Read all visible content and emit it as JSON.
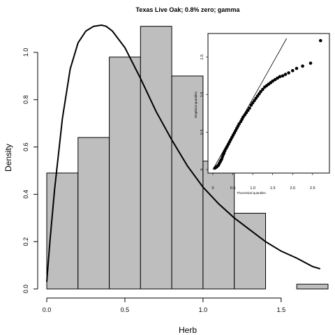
{
  "chart_data": [
    {
      "type": "bar",
      "subtype": "histogram",
      "title": "Texas Live Oak; 0.8% zero; gamma",
      "xlabel": "Herb",
      "ylabel": "Density",
      "xlim": [
        0,
        1.8
      ],
      "ylim": [
        0,
        1.1
      ],
      "xticks": [
        "0.0",
        "0.5",
        "1.0",
        "1.5"
      ],
      "yticks": [
        "0.0",
        "0.2",
        "0.4",
        "0.6",
        "0.8",
        "1.0"
      ],
      "bins": [
        {
          "x0": 0.0,
          "x1": 0.2,
          "density": 0.49
        },
        {
          "x0": 0.2,
          "x1": 0.4,
          "density": 0.64
        },
        {
          "x0": 0.4,
          "x1": 0.6,
          "density": 0.98
        },
        {
          "x0": 0.6,
          "x1": 0.8,
          "density": 1.11
        },
        {
          "x0": 0.8,
          "x1": 1.0,
          "density": 0.9
        },
        {
          "x0": 1.0,
          "x1": 1.2,
          "density": 0.54
        },
        {
          "x0": 1.2,
          "x1": 1.4,
          "density": 0.32
        },
        {
          "x0": 1.4,
          "x1": 1.6,
          "density": 0.0
        },
        {
          "x0": 1.6,
          "x1": 1.8,
          "density": 0.02
        }
      ],
      "bar_color": "#bebebe",
      "fitted_curve": {
        "distribution": "gamma",
        "x": [
          0.0,
          0.02,
          0.05,
          0.1,
          0.15,
          0.2,
          0.25,
          0.3,
          0.35,
          0.38,
          0.42,
          0.5,
          0.6,
          0.7,
          0.8,
          0.9,
          1.0,
          1.1,
          1.2,
          1.3,
          1.4,
          1.5,
          1.6,
          1.7,
          1.75
        ],
        "y": [
          0.03,
          0.2,
          0.42,
          0.72,
          0.93,
          1.04,
          1.09,
          1.11,
          1.115,
          1.11,
          1.09,
          1.02,
          0.89,
          0.75,
          0.63,
          0.52,
          0.43,
          0.36,
          0.3,
          0.25,
          0.2,
          0.16,
          0.13,
          0.095,
          0.085
        ]
      }
    },
    {
      "type": "scatter",
      "subtype": "qq-plot",
      "xlabel": "Theoretical quantiles",
      "ylabel": "Empirical quantiles",
      "xlim": [
        0,
        2.8
      ],
      "ylim": [
        0,
        1.75
      ],
      "xticks": [
        "0",
        "0.5",
        "1.0",
        "1.5",
        "2.0",
        "2.5"
      ],
      "yticks": [
        "0",
        "0.5",
        "1.0",
        "1.5"
      ],
      "reference_line": {
        "x": [
          0,
          1.85
        ],
        "y": [
          0,
          1.75
        ]
      },
      "points": {
        "x": [
          0.05,
          0.08,
          0.1,
          0.12,
          0.14,
          0.16,
          0.18,
          0.2,
          0.22,
          0.24,
          0.26,
          0.28,
          0.3,
          0.33,
          0.36,
          0.39,
          0.42,
          0.45,
          0.48,
          0.51,
          0.54,
          0.57,
          0.6,
          0.63,
          0.66,
          0.7,
          0.73,
          0.76,
          0.8,
          0.84,
          0.88,
          0.92,
          0.96,
          1.0,
          1.04,
          1.08,
          1.12,
          1.16,
          1.2,
          1.25,
          1.3,
          1.35,
          1.4,
          1.45,
          1.5,
          1.56,
          1.62,
          1.68,
          1.75,
          1.82,
          1.9,
          2.0,
          2.1,
          2.25,
          2.45,
          2.7
        ],
        "y": [
          0.02,
          0.03,
          0.04,
          0.05,
          0.06,
          0.08,
          0.1,
          0.12,
          0.14,
          0.17,
          0.2,
          0.22,
          0.25,
          0.28,
          0.31,
          0.34,
          0.37,
          0.4,
          0.43,
          0.46,
          0.49,
          0.52,
          0.55,
          0.58,
          0.61,
          0.64,
          0.67,
          0.7,
          0.73,
          0.76,
          0.79,
          0.82,
          0.86,
          0.89,
          0.92,
          0.95,
          0.98,
          1.01,
          1.04,
          1.07,
          1.1,
          1.12,
          1.14,
          1.16,
          1.18,
          1.2,
          1.22,
          1.24,
          1.25,
          1.27,
          1.29,
          1.32,
          1.35,
          1.38,
          1.42,
          1.72
        ]
      }
    }
  ]
}
